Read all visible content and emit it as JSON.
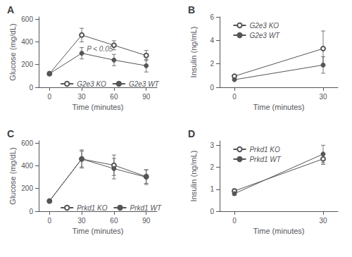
{
  "chart_data": [
    {
      "type": "line",
      "title": "A",
      "xlabel": "Time (minutes)",
      "ylabel": "Glucose (mg/dL)",
      "x": [
        0,
        30,
        60,
        90
      ],
      "xlim": [
        -10,
        100
      ],
      "xticks": [
        0,
        30,
        60,
        90
      ],
      "ylim": [
        0,
        620
      ],
      "yticks": [
        0,
        200,
        400,
        600
      ],
      "grid": false,
      "legend": "lower left",
      "annotations": [
        {
          "text": "P < 0.05",
          "x": 32,
          "y": 340,
          "color": "#333333"
        }
      ],
      "series": [
        {
          "name": "G2e3 KO",
          "color": "#555555",
          "marker": "open_circle",
          "values": [
            120,
            460,
            370,
            280
          ],
          "errors": [
            15,
            60,
            40,
            45
          ]
        },
        {
          "name": "G2e3 WT",
          "color": "#555555",
          "marker": "circle",
          "values": [
            120,
            300,
            240,
            190
          ],
          "errors": [
            10,
            50,
            50,
            55
          ]
        }
      ]
    },
    {
      "type": "line",
      "title": "B",
      "xlabel": "Time (minutes)",
      "ylabel": "Insulin (ng/mL)",
      "x": [
        0,
        30
      ],
      "xlim": [
        -5,
        35
      ],
      "xticks": [
        0,
        30
      ],
      "ylim": [
        0,
        6
      ],
      "yticks": [
        0,
        2,
        4,
        6
      ],
      "grid": false,
      "legend": "upper left",
      "series": [
        {
          "name": "G2e3 KO",
          "color": "#555555",
          "marker": "open_circle",
          "values": [
            0.95,
            3.3
          ],
          "errors": [
            0.1,
            1.5
          ]
        },
        {
          "name": "G2e3 WT",
          "color": "#555555",
          "marker": "circle",
          "values": [
            0.65,
            1.9
          ],
          "errors": [
            0.08,
            0.7
          ]
        }
      ]
    },
    {
      "type": "line",
      "title": "C",
      "xlabel": "Time (minutes)",
      "ylabel": "Glucose (mg/dL)",
      "x": [
        0,
        30,
        60,
        90
      ],
      "xlim": [
        -10,
        100
      ],
      "xticks": [
        0,
        30,
        60,
        90
      ],
      "ylim": [
        0,
        620
      ],
      "yticks": [
        0,
        200,
        400,
        600
      ],
      "grid": false,
      "legend": "lower left",
      "series": [
        {
          "name": "Prkd1 KO",
          "color": "#555555",
          "marker": "open_circle",
          "values": [
            90,
            460,
            405,
            305
          ],
          "errors": [
            10,
            80,
            90,
            60
          ]
        },
        {
          "name": "Prkd1 WT",
          "color": "#555555",
          "marker": "circle",
          "values": [
            90,
            460,
            375,
            300
          ],
          "errors": [
            12,
            70,
            90,
            65
          ]
        }
      ]
    },
    {
      "type": "line",
      "title": "D",
      "xlabel": "Time (minutes)",
      "ylabel": "Insulin (ng/mL)",
      "x": [
        0,
        30
      ],
      "xlim": [
        -5,
        35
      ],
      "xticks": [
        0,
        30
      ],
      "ylim": [
        0,
        3.2
      ],
      "yticks": [
        0,
        1,
        2,
        3
      ],
      "grid": false,
      "legend": "upper left",
      "series": [
        {
          "name": "Prkd1 KO",
          "color": "#555555",
          "marker": "open_circle",
          "values": [
            0.92,
            2.38
          ],
          "errors": [
            0.1,
            0.25
          ]
        },
        {
          "name": "Prkd1 WT",
          "color": "#555555",
          "marker": "circle",
          "values": [
            0.8,
            2.6
          ],
          "errors": [
            0.08,
            0.4
          ]
        }
      ]
    }
  ]
}
